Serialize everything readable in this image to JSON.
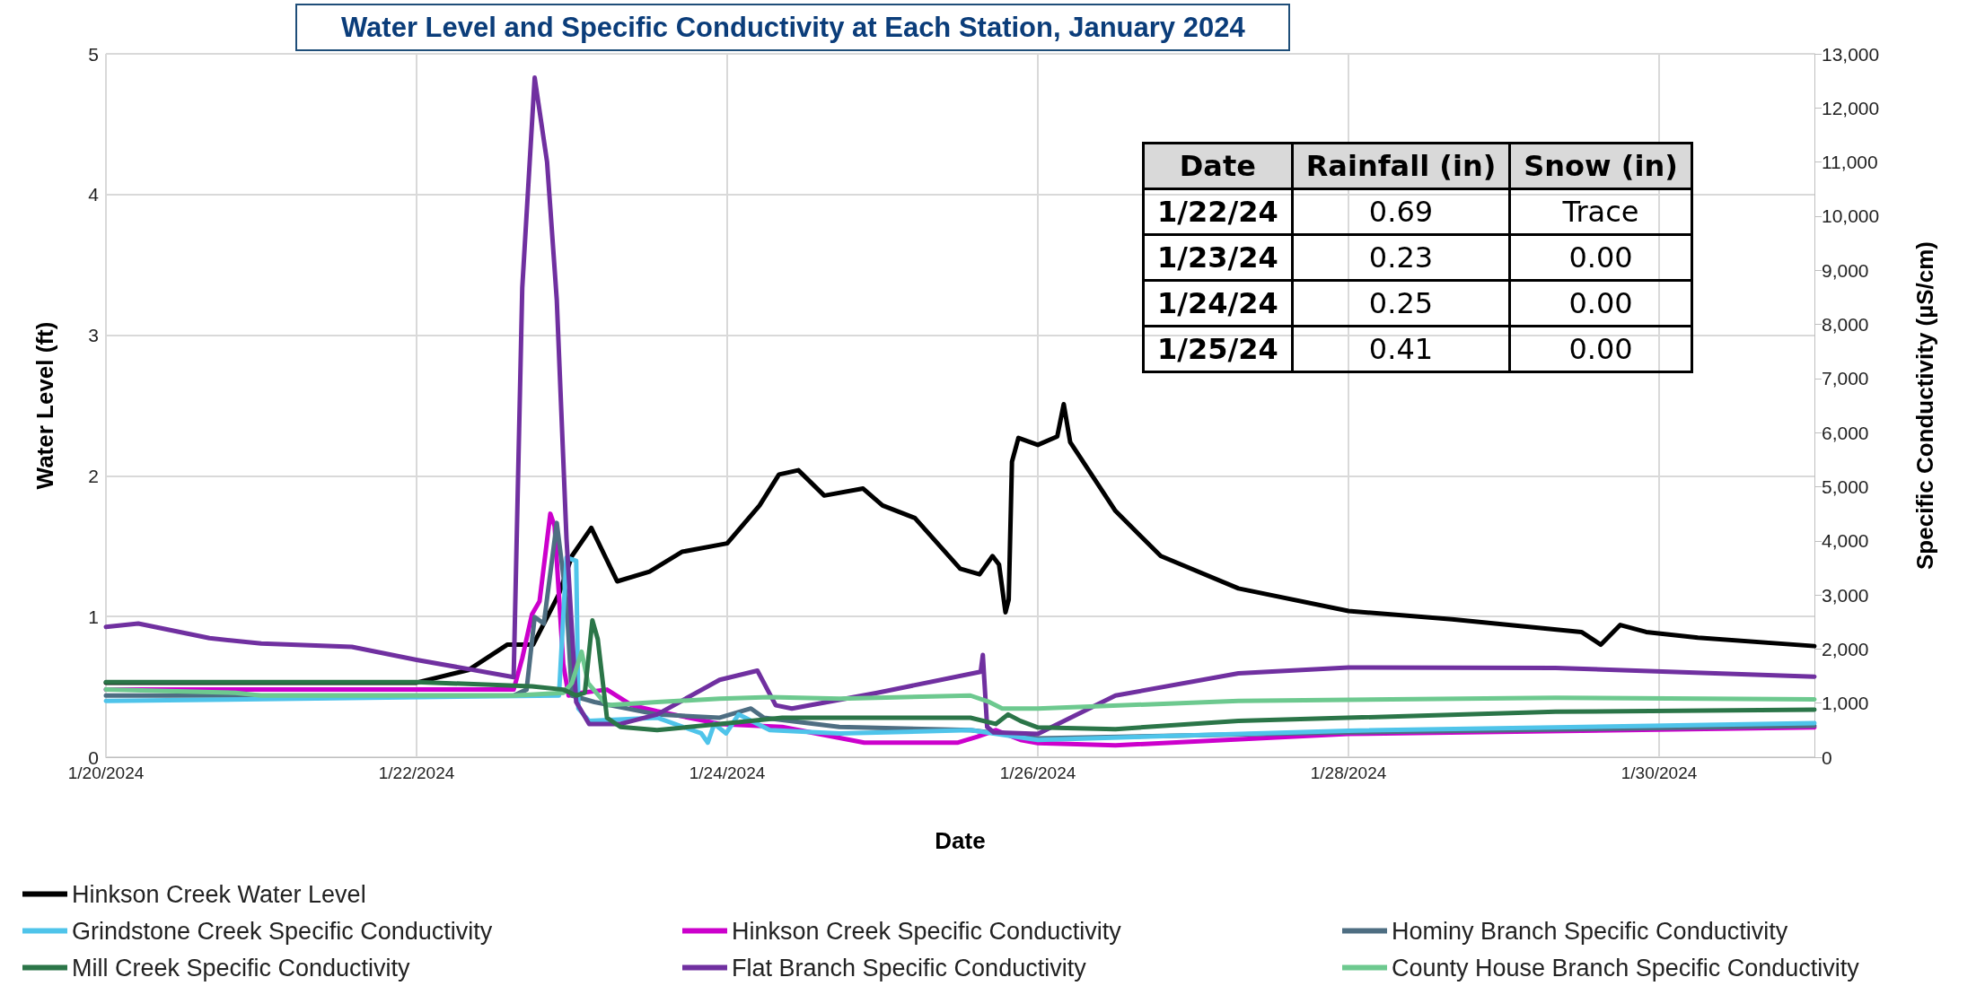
{
  "chart_data": {
    "type": "line",
    "title": "Water Level and Specific Conductivity at Each Station, January 2024",
    "xlabel": "Date",
    "ylabel": "Water Level (ft)",
    "y2label": "Specific Conductivity (µS/cm)",
    "xlim": [
      "2024-01-20",
      "2024-01-31"
    ],
    "xticks": [
      {
        "value": "2024-01-20",
        "label": "1/20/2024"
      },
      {
        "value": "2024-01-22",
        "label": "1/22/2024"
      },
      {
        "value": "2024-01-24",
        "label": "1/24/2024"
      },
      {
        "value": "2024-01-26",
        "label": "1/26/2024"
      },
      {
        "value": "2024-01-28",
        "label": "1/28/2024"
      },
      {
        "value": "2024-01-30",
        "label": "1/30/2024"
      }
    ],
    "ylim": [
      0,
      5
    ],
    "yticks": [
      0,
      1,
      2,
      3,
      4,
      5
    ],
    "y2lim": [
      0,
      13000
    ],
    "y2ticks": [
      0,
      {
        "value": 1000,
        "label": "1,000"
      },
      {
        "value": 2000,
        "label": "2,000"
      },
      {
        "value": 3000,
        "label": "3,000"
      },
      {
        "value": 4000,
        "label": "4,000"
      },
      {
        "value": 5000,
        "label": "5,000"
      },
      {
        "value": 6000,
        "label": "6,000"
      },
      {
        "value": 7000,
        "label": "7,000"
      },
      {
        "value": 8000,
        "label": "8,000"
      },
      {
        "value": 9000,
        "label": "9,000"
      },
      {
        "value": 10000,
        "label": "10,000"
      },
      {
        "value": 11000,
        "label": "11,000"
      },
      {
        "value": 12000,
        "label": "12,000"
      },
      {
        "value": 13000,
        "label": "13,000"
      }
    ],
    "grid": true,
    "legend": "bottom",
    "marker": "none",
    "line_style": "solid",
    "annotations": [
      "Date",
      "Rainfall (in)",
      "Snow (in)",
      "1/22/24",
      "0.69",
      "Trace",
      "1/23/24",
      "0.23",
      "0.00",
      "1/24/24",
      "0.25",
      "0.00",
      "1/25/24",
      "0.41",
      "0.00"
    ],
    "series": [
      {
        "name": "Hinkson Creek Water Level",
        "color": "#000000",
        "x": [
          "2024-01-20T00:00",
          "2024-01-22T00:00",
          "2024-01-22T08:00",
          "2024-01-22T14:00",
          "2024-01-22T18:00",
          "2024-01-22T22:00",
          "2024-01-23T00:00",
          "2024-01-23T03:00",
          "2024-01-23T07:00",
          "2024-01-23T12:00",
          "2024-01-23T17:00",
          "2024-01-24T00:00",
          "2024-01-24T05:00",
          "2024-01-24T08:00",
          "2024-01-24T11:00",
          "2024-01-24T15:00",
          "2024-01-24T21:00",
          "2024-01-25T00:00",
          "2024-01-25T05:00",
          "2024-01-25T12:00",
          "2024-01-25T15:00",
          "2024-01-25T17:00",
          "2024-01-25T18:00",
          "2024-01-25T19:00",
          "2024-01-25T19:30",
          "2024-01-25T20:00",
          "2024-01-25T21:00",
          "2024-01-26T00:00",
          "2024-01-26T03:00",
          "2024-01-26T04:00",
          "2024-01-26T05:00",
          "2024-01-26T10:00",
          "2024-01-26T12:00",
          "2024-01-26T19:00",
          "2024-01-27T07:00",
          "2024-01-28T00:00",
          "2024-01-28T16:00",
          "2024-01-29T12:00",
          "2024-01-29T15:00",
          "2024-01-29T18:00",
          "2024-01-29T22:00",
          "2024-01-30T06:00",
          "2024-01-31T00:00"
        ],
        "values": [
          0.53,
          0.53,
          0.62,
          0.8,
          0.8,
          1.16,
          1.43,
          1.63,
          1.25,
          1.32,
          1.46,
          1.52,
          1.79,
          2.01,
          2.04,
          1.86,
          1.91,
          1.79,
          1.7,
          1.34,
          1.3,
          1.43,
          1.37,
          1.03,
          1.12,
          2.1,
          2.27,
          2.22,
          2.28,
          2.51,
          2.24,
          1.89,
          1.75,
          1.43,
          1.2,
          1.04,
          0.98,
          0.89,
          0.8,
          0.94,
          0.89,
          0.85,
          0.79
        ]
      },
      {
        "name": "Hinkson Creek Specific Conductivity",
        "color": "#cc00cc",
        "axis": "y2",
        "x": [
          "2024-01-20T00:00",
          "2024-01-22T15:00",
          "2024-01-22T16:20",
          "2024-01-22T17:50",
          "2024-01-22T19:00",
          "2024-01-22T20:40",
          "2024-01-22T21:20",
          "2024-01-22T22:40",
          "2024-01-22T23:30",
          "2024-01-23T01:30",
          "2024-01-23T05:25",
          "2024-01-23T09:15",
          "2024-01-23T13:10",
          "2024-01-23T22:50",
          "2024-01-24T08:30",
          "2024-01-24T21:10",
          "2024-01-25T11:40",
          "2024-01-25T14:40",
          "2024-01-25T17:30",
          "2024-01-25T21:20",
          "2024-01-26T00:00",
          "2024-01-26T12:00",
          "2024-01-28T00:00",
          "2024-01-31T00:00"
        ],
        "values": [
          1250,
          1250,
          1830,
          2640,
          2880,
          4500,
          4270,
          1720,
          1140,
          1190,
          1250,
          960,
          850,
          615,
          560,
          270,
          270,
          380,
          500,
          320,
          260,
          220,
          430,
          550
        ]
      },
      {
        "name": "Hominy Branch Specific Conductivity",
        "color": "#4e6e82",
        "axis": "y2",
        "x": [
          "2024-01-20T00:00",
          "2024-01-22T15:00",
          "2024-01-22T17:00",
          "2024-01-22T18:15",
          "2024-01-22T19:40",
          "2024-01-22T21:40",
          "2024-01-22T23:10",
          "2024-01-23T00:00",
          "2024-01-23T03:30",
          "2024-01-23T13:10",
          "2024-01-23T22:50",
          "2024-01-24T03:40",
          "2024-01-24T05:40",
          "2024-01-24T17:20",
          "2024-01-25T13:35",
          "2024-01-26T00:00",
          "2024-01-28T00:00",
          "2024-01-31T00:00"
        ],
        "values": [
          1140,
          1140,
          1250,
          2590,
          2470,
          4330,
          2880,
          1140,
          1020,
          790,
          730,
          900,
          730,
          560,
          500,
          350,
          460,
          580
        ]
      },
      {
        "name": "Grindstone Creek Specific Conductivity",
        "color": "#4fc4ea",
        "axis": "y2",
        "x": [
          "2024-01-20T00:00",
          "2024-01-22T22:00",
          "2024-01-22T23:10",
          "2024-01-23T00:40",
          "2024-01-23T01:00",
          "2024-01-23T02:40",
          "2024-01-23T13:10",
          "2024-01-23T20:00",
          "2024-01-23T21:00",
          "2024-01-23T22:00",
          "2024-01-23T23:50",
          "2024-01-24T01:45",
          "2024-01-24T06:35",
          "2024-01-24T17:20",
          "2024-01-25T13:35",
          "2024-01-26T00:00",
          "2024-01-28T00:00",
          "2024-01-31T00:00"
        ],
        "values": [
          1040,
          1140,
          3690,
          3630,
          900,
          670,
          730,
          440,
          270,
          615,
          440,
          790,
          500,
          440,
          500,
          320,
          490,
          630
        ]
      },
      {
        "name": "Flat Branch Specific Conductivity",
        "color": "#7030a0",
        "x": [
          "2024-01-20T00:00",
          "2024-01-20T05:00",
          "2024-01-20T16:00",
          "2024-01-21T00:00",
          "2024-01-21T14:00",
          "2024-01-22T00:00",
          "2024-01-22T15:00",
          "2024-01-22T16:20",
          "2024-01-22T18:15",
          "2024-01-22T20:10",
          "2024-01-22T21:40",
          "2024-01-22T23:10",
          "2024-01-23T00:40",
          "2024-01-23T02:40",
          "2024-01-23T07:30",
          "2024-01-23T13:10",
          "2024-01-23T22:50",
          "2024-01-24T04:40",
          "2024-01-24T07:30",
          "2024-01-24T10:00",
          "2024-01-24T23:10",
          "2024-01-25T15:10",
          "2024-01-25T15:30",
          "2024-01-25T16:10",
          "2024-01-25T17:10",
          "2024-01-26T00:00",
          "2024-01-26T12:00",
          "2024-01-27T07:00",
          "2024-01-28T00:00",
          "2024-01-29T08:00",
          "2024-01-31T00:00"
        ],
        "values": [
          2410,
          2470,
          2200,
          2100,
          2040,
          1800,
          1480,
          8680,
          12560,
          11000,
          8450,
          4040,
          1020,
          615,
          615,
          790,
          1430,
          1600,
          960,
          900,
          1190,
          1580,
          1890,
          560,
          460,
          430,
          1140,
          1550,
          1660,
          1650,
          1490
        ],
        "axis": "y2"
      },
      {
        "name": "County House Branch Specific Conductivity",
        "color": "#6dc98f",
        "axis": "y2",
        "x": [
          "2024-01-20T00:00",
          "2024-01-20T20:00",
          "2024-01-21T00:00",
          "2024-01-22T15:00",
          "2024-01-22T22:40",
          "2024-01-23T00:00",
          "2024-01-23T01:30",
          "2024-01-23T02:30",
          "2024-01-23T05:25",
          "2024-01-23T13:10",
          "2024-01-23T22:50",
          "2024-01-24T06:35",
          "2024-01-24T17:20",
          "2024-01-25T13:35",
          "2024-01-25T16:30",
          "2024-01-25T18:30",
          "2024-01-26T00:00",
          "2024-01-27T07:00",
          "2024-01-29T08:00",
          "2024-01-31T00:00"
        ],
        "values": [
          1250,
          1190,
          1140,
          1140,
          1190,
          1370,
          1950,
          1370,
          960,
          1020,
          1080,
          1110,
          1080,
          1140,
          1020,
          900,
          900,
          1040,
          1100,
          1070
        ]
      },
      {
        "name": "Mill Creek Specific Conductivity",
        "color": "#2b7548",
        "axis": "y2",
        "x": [
          "2024-01-20T00:00",
          "2024-01-22T00:00",
          "2024-01-22T17:50",
          "2024-01-22T22:40",
          "2024-01-23T00:40",
          "2024-01-23T02:00",
          "2024-01-23T03:10",
          "2024-01-23T04:00",
          "2024-01-23T05:25",
          "2024-01-23T07:30",
          "2024-01-23T13:10",
          "2024-01-23T22:50",
          "2024-01-24T08:30",
          "2024-01-25T13:35",
          "2024-01-25T17:30",
          "2024-01-25T19:25",
          "2024-01-25T21:20",
          "2024-01-26T00:00",
          "2024-01-26T12:00",
          "2024-01-27T07:00",
          "2024-01-29T08:00",
          "2024-01-31T00:00"
        ],
        "values": [
          1390,
          1390,
          1310,
          1250,
          1140,
          1190,
          2530,
          2180,
          730,
          560,
          500,
          615,
          730,
          730,
          615,
          790,
          670,
          550,
          520,
          670,
          840,
          880
        ]
      }
    ]
  }
}
